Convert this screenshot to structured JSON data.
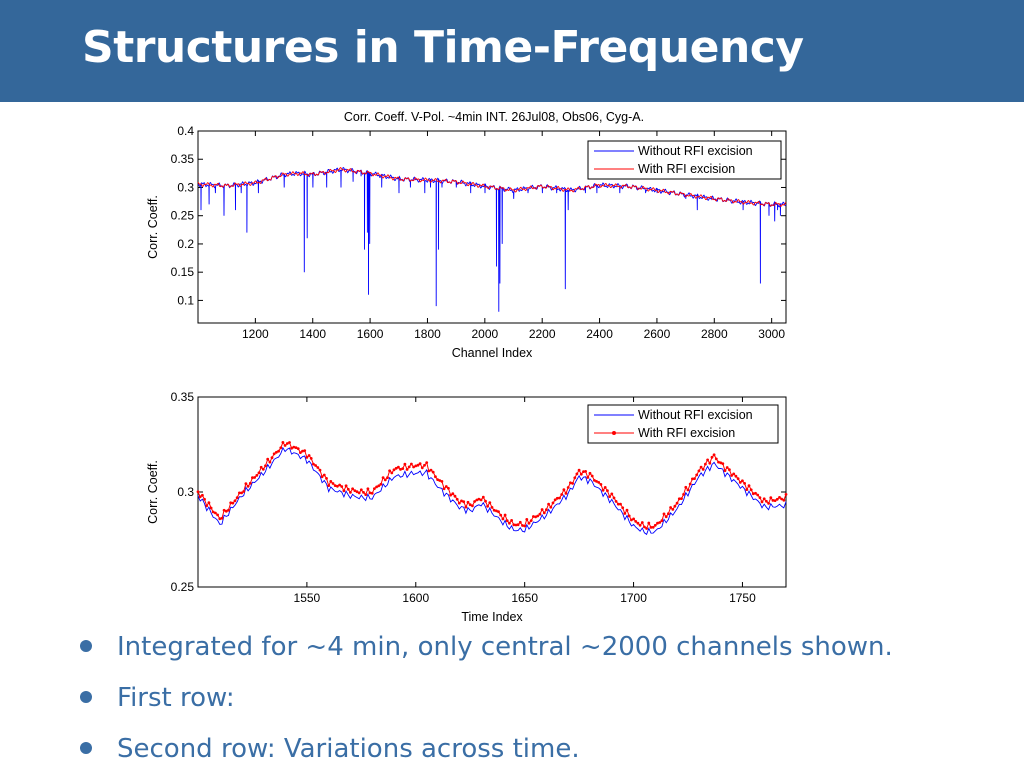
{
  "slide": {
    "title": "Structures in Time-Frequency",
    "bullets": [
      "Integrated for ~4 min, only central ~2000 channels shown.",
      "First row:",
      "Second row: Variations across time."
    ]
  },
  "colors": {
    "header_bg": "#34679a",
    "bullet_text": "#3a6ea5",
    "series_blue": "#0000ff",
    "series_red": "#ff0000"
  },
  "chart_data": [
    {
      "type": "line",
      "title": "Corr. Coeff. V-Pol. ~4min INT. 26Jul08, Obs06, Cyg-A.",
      "xlabel": "Channel Index",
      "ylabel": "Corr. Coeff.",
      "xlim": [
        1000,
        3050
      ],
      "ylim": [
        0.06,
        0.4
      ],
      "xticks": [
        1200,
        1400,
        1600,
        1800,
        2000,
        2200,
        2400,
        2600,
        2800,
        3000
      ],
      "yticks": [
        0.1,
        0.15,
        0.2,
        0.25,
        0.3,
        0.35,
        0.4
      ],
      "ytick_labels": [
        "0.1",
        "0.15",
        "0.2",
        "0.25",
        "0.3",
        "0.35",
        "0.4"
      ],
      "legend_position": "top-right",
      "baseline": {
        "x": [
          1000,
          1100,
          1200,
          1300,
          1350,
          1400,
          1500,
          1600,
          1700,
          1800,
          1900,
          2000,
          2100,
          2200,
          2300,
          2400,
          2500,
          2600,
          2700,
          2800,
          2900,
          3000,
          3050
        ],
        "y": [
          0.306,
          0.303,
          0.308,
          0.323,
          0.325,
          0.323,
          0.332,
          0.325,
          0.315,
          0.313,
          0.31,
          0.302,
          0.295,
          0.302,
          0.295,
          0.304,
          0.302,
          0.295,
          0.287,
          0.28,
          0.274,
          0.27,
          0.27
        ]
      },
      "series": [
        {
          "name": "Without RFI excision",
          "color": "#0000ff",
          "spikes": [
            [
              1010,
              0.26
            ],
            [
              1025,
              0.2
            ],
            [
              1038,
              0.27
            ],
            [
              1060,
              0.29
            ],
            [
              1090,
              0.25
            ],
            [
              1130,
              0.26
            ],
            [
              1150,
              0.29
            ],
            [
              1170,
              0.22
            ],
            [
              1210,
              0.29
            ],
            [
              1300,
              0.3
            ],
            [
              1335,
              0.29
            ],
            [
              1355,
              0.22
            ],
            [
              1365,
              0.41
            ],
            [
              1370,
              0.15
            ],
            [
              1380,
              0.21
            ],
            [
              1400,
              0.3
            ],
            [
              1448,
              0.3
            ],
            [
              1498,
              0.3
            ],
            [
              1540,
              0.31
            ],
            [
              1568,
              0.32
            ],
            [
              1580,
              0.19
            ],
            [
              1585,
              0.16
            ],
            [
              1590,
              0.22
            ],
            [
              1594,
              0.11
            ],
            [
              1598,
              0.2
            ],
            [
              1605,
              0.24
            ],
            [
              1613,
              0.36
            ],
            [
              1640,
              0.3
            ],
            [
              1700,
              0.29
            ],
            [
              1740,
              0.3
            ],
            [
              1790,
              0.29
            ],
            [
              1810,
              0.3
            ],
            [
              1830,
              0.09
            ],
            [
              1838,
              0.19
            ],
            [
              1850,
              0.3
            ],
            [
              1900,
              0.3
            ],
            [
              1950,
              0.29
            ],
            [
              2000,
              0.29
            ],
            [
              2040,
              0.16
            ],
            [
              2048,
              0.08
            ],
            [
              2052,
              0.13
            ],
            [
              2060,
              0.2
            ],
            [
              2075,
              0.28
            ],
            [
              2100,
              0.28
            ],
            [
              2150,
              0.29
            ],
            [
              2200,
              0.29
            ],
            [
              2250,
              0.29
            ],
            [
              2275,
              0.27
            ],
            [
              2280,
              0.12
            ],
            [
              2290,
              0.26
            ],
            [
              2350,
              0.29
            ],
            [
              2390,
              0.29
            ],
            [
              2470,
              0.29
            ],
            [
              2560,
              0.29
            ],
            [
              2600,
              0.29
            ],
            [
              2700,
              0.28
            ],
            [
              2725,
              0.14
            ],
            [
              2733,
              0.09
            ],
            [
              2740,
              0.26
            ],
            [
              2790,
              0.28
            ],
            [
              2900,
              0.26
            ],
            [
              2960,
              0.13
            ],
            [
              2975,
              0.26
            ],
            [
              2990,
              0.25
            ],
            [
              3010,
              0.24
            ],
            [
              3020,
              0.26
            ],
            [
              3030,
              0.25
            ]
          ]
        },
        {
          "name": "With RFI excision",
          "color": "#ff0000"
        }
      ]
    },
    {
      "type": "line",
      "xlabel": "Time Index",
      "ylabel": "Corr. Coeff.",
      "xlim": [
        1500,
        1770
      ],
      "ylim": [
        0.25,
        0.35
      ],
      "xticks": [
        1550,
        1600,
        1650,
        1700,
        1750
      ],
      "yticks": [
        0.25,
        0.3,
        0.35
      ],
      "ytick_labels": [
        "0.25",
        "0.3",
        "0.35"
      ],
      "legend_position": "top-right",
      "series": [
        {
          "name": "Without RFI excision",
          "color": "#0000ff",
          "x": [
            1500,
            1510,
            1520,
            1530,
            1540,
            1550,
            1560,
            1570,
            1575,
            1580,
            1590,
            1600,
            1605,
            1610,
            1620,
            1625,
            1630,
            1640,
            1645,
            1650,
            1660,
            1670,
            1675,
            1680,
            1690,
            1700,
            1705,
            1710,
            1720,
            1730,
            1737,
            1740,
            1750,
            1760,
            1770
          ],
          "y": [
            0.298,
            0.283,
            0.298,
            0.31,
            0.323,
            0.317,
            0.302,
            0.298,
            0.297,
            0.297,
            0.308,
            0.31,
            0.31,
            0.303,
            0.292,
            0.29,
            0.294,
            0.284,
            0.28,
            0.28,
            0.288,
            0.299,
            0.308,
            0.306,
            0.295,
            0.282,
            0.279,
            0.279,
            0.291,
            0.308,
            0.315,
            0.312,
            0.302,
            0.292,
            0.293
          ]
        },
        {
          "name": "With RFI excision",
          "color": "#ff0000",
          "x": [
            1500,
            1510,
            1520,
            1530,
            1540,
            1550,
            1560,
            1570,
            1575,
            1580,
            1590,
            1600,
            1605,
            1610,
            1620,
            1625,
            1630,
            1640,
            1645,
            1650,
            1660,
            1670,
            1675,
            1680,
            1690,
            1700,
            1705,
            1710,
            1720,
            1730,
            1737,
            1740,
            1750,
            1760,
            1770
          ],
          "y": [
            0.3,
            0.286,
            0.3,
            0.313,
            0.326,
            0.32,
            0.305,
            0.301,
            0.3,
            0.3,
            0.312,
            0.314,
            0.314,
            0.307,
            0.295,
            0.293,
            0.297,
            0.287,
            0.283,
            0.283,
            0.291,
            0.302,
            0.311,
            0.309,
            0.298,
            0.285,
            0.282,
            0.282,
            0.294,
            0.311,
            0.319,
            0.315,
            0.305,
            0.295,
            0.297
          ]
        }
      ]
    }
  ]
}
